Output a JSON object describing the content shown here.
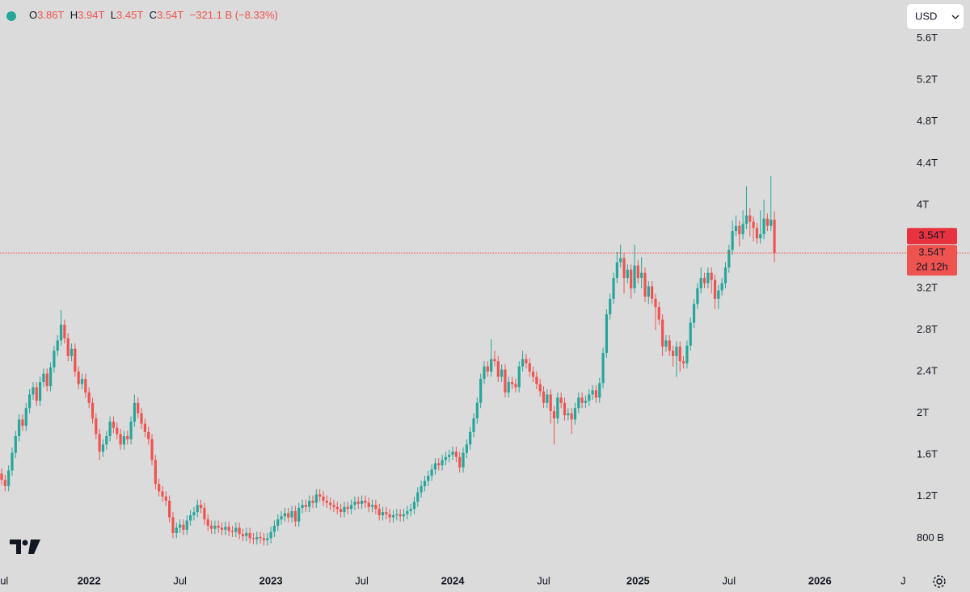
{
  "legend": {
    "items": [
      {
        "key": "O",
        "value": "3.86T"
      },
      {
        "key": "H",
        "value": "3.94T"
      },
      {
        "key": "L",
        "value": "3.45T"
      },
      {
        "key": "C",
        "value": "3.54T"
      }
    ],
    "change": "−321.1 B (−8.33%)"
  },
  "currency": "USD",
  "chart_data": {
    "type": "candlestick",
    "up_color": "#26a69a",
    "down_color": "#ef5350",
    "grid": false,
    "ylim": [
      0.5,
      5.97
    ],
    "yticks": [
      {
        "value": 0.8,
        "label": "800 B"
      },
      {
        "value": 1.2,
        "label": "1.2T"
      },
      {
        "value": 1.6,
        "label": "1.6T"
      },
      {
        "value": 2,
        "label": "2T"
      },
      {
        "value": 2.4,
        "label": "2.4T"
      },
      {
        "value": 2.8,
        "label": "2.8T"
      },
      {
        "value": 3.2,
        "label": "3.2T"
      },
      {
        "value": 4,
        "label": "4T"
      },
      {
        "value": 4.4,
        "label": "4.4T"
      },
      {
        "value": 4.8,
        "label": "4.8T"
      },
      {
        "value": 5.2,
        "label": "5.2T"
      },
      {
        "value": 5.6,
        "label": "5.6T"
      }
    ],
    "price_labels": [
      "3.54T",
      "3.54T"
    ],
    "countdown": "2d 12h",
    "categories": [
      "Jul",
      null,
      null,
      null,
      null,
      null,
      null,
      null,
      null,
      null,
      null,
      null,
      null,
      null,
      null,
      null,
      null,
      null,
      null,
      null,
      null,
      null,
      null,
      null,
      null,
      "2022",
      null,
      null,
      null,
      null,
      null,
      null,
      null,
      null,
      null,
      null,
      null,
      null,
      null,
      null,
      null,
      null,
      null,
      null,
      null,
      null,
      null,
      null,
      null,
      null,
      null,
      "Jul",
      null,
      null,
      null,
      null,
      null,
      null,
      null,
      null,
      null,
      null,
      null,
      null,
      null,
      null,
      null,
      null,
      null,
      null,
      null,
      null,
      null,
      null,
      null,
      null,
      null,
      "2023",
      null,
      null,
      null,
      null,
      null,
      null,
      null,
      null,
      null,
      null,
      null,
      null,
      null,
      null,
      null,
      null,
      null,
      null,
      null,
      null,
      null,
      null,
      null,
      null,
      null,
      "Jul",
      null,
      null,
      null,
      null,
      null,
      null,
      null,
      null,
      null,
      null,
      null,
      null,
      null,
      null,
      null,
      null,
      null,
      null,
      null,
      null,
      null,
      null,
      null,
      null,
      null,
      "2024",
      null,
      null,
      null,
      null,
      null,
      null,
      null,
      null,
      null,
      null,
      null,
      null,
      null,
      null,
      null,
      null,
      null,
      null,
      null,
      null,
      null,
      null,
      null,
      null,
      null,
      "Jul",
      null,
      null,
      null,
      null,
      null,
      null,
      null,
      null,
      null,
      null,
      null,
      null,
      null,
      null,
      null,
      null,
      null,
      null,
      null,
      null,
      null,
      null,
      null,
      null,
      null,
      null,
      "2025",
      null,
      null,
      null,
      null,
      null,
      null,
      null,
      null,
      null,
      null,
      null,
      null,
      null,
      null,
      null,
      null,
      null,
      null,
      null,
      null,
      null,
      null,
      null,
      null,
      null,
      "Jul",
      null,
      null,
      null,
      null,
      null,
      null,
      null,
      null,
      null,
      null,
      null,
      null,
      null,
      null,
      null,
      null,
      null,
      null,
      null,
      null,
      null,
      null,
      null,
      null,
      null,
      "2026",
      null,
      null,
      null,
      null,
      null,
      null,
      null,
      null,
      null,
      null,
      null,
      null,
      null,
      null,
      null,
      null,
      null,
      null,
      null,
      null,
      null,
      null,
      null,
      null,
      "Jul"
    ],
    "open": [
      1.42,
      1.36,
      1.3,
      1.45,
      1.62,
      1.78,
      1.94,
      1.88,
      2.05,
      2.18,
      2.25,
      2.12,
      2.3,
      2.38,
      2.26,
      2.44,
      2.6,
      2.7,
      2.85,
      2.72,
      2.55,
      2.62,
      2.4,
      2.28,
      2.33,
      2.2,
      2.1,
      1.95,
      1.8,
      1.63,
      1.7,
      1.78,
      1.92,
      1.86,
      1.8,
      1.7,
      1.78,
      1.75,
      1.92,
      2.1,
      2.0,
      1.9,
      1.82,
      1.75,
      1.55,
      1.32,
      1.25,
      1.2,
      1.16,
      1.0,
      0.85,
      0.9,
      0.93,
      0.88,
      0.97,
      1.02,
      1.05,
      1.12,
      1.09,
      0.98,
      0.92,
      0.89,
      0.92,
      0.9,
      0.88,
      0.91,
      0.87,
      0.86,
      0.9,
      0.84,
      0.82,
      0.85,
      0.8,
      0.79,
      0.81,
      0.8,
      0.78,
      0.8,
      0.86,
      0.92,
      0.98,
      1.01,
      1.04,
      1.0,
      1.06,
      0.96,
      1.09,
      1.12,
      1.1,
      1.16,
      1.14,
      1.22,
      1.2,
      1.16,
      1.14,
      1.12,
      1.1,
      1.08,
      1.05,
      1.1,
      1.08,
      1.12,
      1.15,
      1.13,
      1.16,
      1.14,
      1.1,
      1.12,
      1.08,
      1.02,
      1.05,
      1.03,
      1.0,
      1.02,
      1.03,
      1.01,
      1.03,
      1.06,
      1.08,
      1.15,
      1.24,
      1.3,
      1.35,
      1.4,
      1.46,
      1.52,
      1.5,
      1.55,
      1.58,
      1.6,
      1.63,
      1.58,
      1.48,
      1.62,
      1.7,
      1.82,
      1.95,
      2.1,
      2.33,
      2.45,
      2.4,
      2.52,
      2.5,
      2.35,
      2.42,
      2.2,
      2.3,
      2.28,
      2.25,
      2.45,
      2.52,
      2.48,
      2.4,
      2.35,
      2.28,
      2.21,
      2.1,
      2.18,
      2.02,
      1.95,
      2.15,
      2.1,
      1.98,
      2.0,
      1.94,
      2.05,
      2.15,
      2.1,
      2.12,
      2.18,
      2.22,
      2.15,
      2.29,
      2.58,
      2.95,
      3.1,
      3.3,
      3.45,
      3.49,
      3.3,
      3.38,
      3.2,
      3.42,
      3.3,
      3.35,
      3.12,
      3.22,
      3.1,
      3.02,
      2.9,
      2.64,
      2.7,
      2.6,
      2.55,
      2.64,
      2.5,
      2.48,
      2.65,
      2.87,
      3.05,
      3.2,
      3.3,
      3.25,
      3.35,
      3.28,
      3.1,
      3.18,
      3.25,
      3.4,
      3.57,
      3.75,
      3.8,
      3.72,
      3.82,
      3.9,
      3.84,
      3.78,
      3.68,
      3.72,
      3.87,
      3.8,
      3.86,
      null,
      null,
      null,
      null,
      null,
      null,
      null,
      null,
      null,
      null,
      null,
      null,
      null,
      null,
      null,
      null,
      null,
      null,
      null,
      null,
      null,
      null,
      null,
      null,
      null,
      null,
      null,
      null,
      null,
      null,
      null,
      null,
      null,
      null,
      null,
      null,
      null,
      null
    ],
    "high": [
      1.47,
      1.41,
      1.5,
      1.67,
      1.83,
      1.99,
      1.99,
      2.1,
      2.23,
      2.3,
      2.3,
      2.35,
      2.43,
      2.43,
      2.49,
      2.65,
      2.75,
      2.99,
      2.9,
      2.77,
      2.67,
      2.67,
      2.45,
      2.38,
      2.38,
      2.25,
      2.15,
      2.0,
      1.85,
      1.75,
      1.83,
      1.97,
      1.97,
      1.91,
      1.85,
      1.83,
      1.83,
      1.97,
      2.18,
      2.15,
      2.05,
      1.95,
      1.87,
      1.8,
      1.6,
      1.37,
      1.3,
      1.25,
      1.21,
      1.05,
      0.95,
      0.98,
      0.98,
      1.02,
      1.07,
      1.1,
      1.17,
      1.17,
      1.14,
      1.03,
      0.97,
      0.97,
      0.97,
      0.95,
      0.96,
      0.96,
      0.92,
      0.95,
      0.95,
      0.89,
      0.9,
      0.9,
      0.85,
      0.86,
      0.86,
      0.85,
      0.85,
      0.91,
      0.97,
      1.03,
      1.06,
      1.09,
      1.09,
      1.11,
      1.11,
      1.14,
      1.17,
      1.17,
      1.21,
      1.21,
      1.27,
      1.27,
      1.25,
      1.21,
      1.19,
      1.17,
      1.15,
      1.13,
      1.15,
      1.15,
      1.17,
      1.2,
      1.2,
      1.21,
      1.21,
      1.19,
      1.17,
      1.17,
      1.13,
      1.1,
      1.1,
      1.08,
      1.07,
      1.08,
      1.08,
      1.08,
      1.11,
      1.13,
      1.2,
      1.29,
      1.35,
      1.4,
      1.45,
      1.51,
      1.57,
      1.57,
      1.6,
      1.63,
      1.65,
      1.68,
      1.68,
      1.63,
      1.67,
      1.75,
      1.87,
      2.0,
      2.15,
      2.38,
      2.5,
      2.5,
      2.71,
      2.6,
      2.55,
      2.47,
      2.47,
      2.35,
      2.35,
      2.33,
      2.5,
      2.6,
      2.57,
      2.53,
      2.45,
      2.4,
      2.33,
      2.26,
      2.23,
      2.23,
      2.07,
      2.2,
      2.2,
      2.15,
      2.05,
      2.05,
      2.1,
      2.2,
      2.2,
      2.17,
      2.23,
      2.27,
      2.27,
      2.34,
      2.63,
      3.0,
      3.15,
      3.35,
      3.55,
      3.62,
      3.54,
      3.43,
      3.43,
      3.62,
      3.47,
      3.5,
      3.4,
      3.27,
      3.27,
      3.15,
      3.07,
      2.95,
      2.75,
      2.75,
      2.65,
      2.69,
      2.69,
      2.55,
      2.7,
      2.92,
      3.1,
      3.25,
      3.4,
      3.35,
      3.4,
      3.4,
      3.33,
      3.23,
      3.3,
      3.45,
      3.62,
      3.85,
      3.9,
      3.85,
      3.95,
      4.18,
      3.97,
      3.89,
      3.83,
      3.95,
      4.05,
      3.92,
      4.28,
      3.94,
      null,
      null,
      null,
      null,
      null,
      null,
      null,
      null,
      null,
      null,
      null,
      null,
      null,
      null,
      null,
      null,
      null,
      null,
      null,
      null,
      null,
      null,
      null,
      null,
      null,
      null,
      null,
      null,
      null,
      null,
      null,
      null,
      null,
      null,
      null,
      null,
      null,
      null
    ],
    "low": [
      1.31,
      1.25,
      1.25,
      1.4,
      1.57,
      1.73,
      1.83,
      1.83,
      2.0,
      2.13,
      2.07,
      2.07,
      2.25,
      2.21,
      2.21,
      2.39,
      2.55,
      2.65,
      2.67,
      2.5,
      2.5,
      2.35,
      2.23,
      2.23,
      2.15,
      2.05,
      1.9,
      1.75,
      1.55,
      1.58,
      1.65,
      1.73,
      1.81,
      1.75,
      1.65,
      1.65,
      1.7,
      1.7,
      1.87,
      1.95,
      1.85,
      1.77,
      1.7,
      1.5,
      1.27,
      1.2,
      1.15,
      1.11,
      0.95,
      0.8,
      0.8,
      0.85,
      0.83,
      0.83,
      0.92,
      0.97,
      1.0,
      1.04,
      0.93,
      0.87,
      0.84,
      0.84,
      0.85,
      0.83,
      0.83,
      0.82,
      0.81,
      0.81,
      0.79,
      0.77,
      0.77,
      0.75,
      0.74,
      0.74,
      0.75,
      0.73,
      0.73,
      0.75,
      0.81,
      0.87,
      0.93,
      0.96,
      0.95,
      0.95,
      0.91,
      0.91,
      1.04,
      1.05,
      1.05,
      1.09,
      1.09,
      1.15,
      1.11,
      1.09,
      1.07,
      1.05,
      1.03,
      1.0,
      1.0,
      1.03,
      1.03,
      1.07,
      1.08,
      1.08,
      1.09,
      1.05,
      1.05,
      1.03,
      0.97,
      0.97,
      0.98,
      0.95,
      0.95,
      0.97,
      0.96,
      0.96,
      0.98,
      1.01,
      1.03,
      1.1,
      1.19,
      1.25,
      1.3,
      1.35,
      1.41,
      1.45,
      1.45,
      1.5,
      1.53,
      1.55,
      1.53,
      1.43,
      1.43,
      1.57,
      1.65,
      1.77,
      1.9,
      2.05,
      2.28,
      2.35,
      2.35,
      2.45,
      2.3,
      2.3,
      2.15,
      2.15,
      2.23,
      2.2,
      2.2,
      2.4,
      2.43,
      2.35,
      2.3,
      2.23,
      2.16,
      2.05,
      2.05,
      1.9,
      1.7,
      1.9,
      2.05,
      1.93,
      1.93,
      1.8,
      1.89,
      2.0,
      2.05,
      2.05,
      2.07,
      2.13,
      2.1,
      2.1,
      2.24,
      2.53,
      2.9,
      3.05,
      3.25,
      3.4,
      3.15,
      3.25,
      3.1,
      3.15,
      3.25,
      3.2,
      3.07,
      3.05,
      3.05,
      2.8,
      2.85,
      2.55,
      2.59,
      2.55,
      2.45,
      2.35,
      2.4,
      2.43,
      2.43,
      2.6,
      2.82,
      3.0,
      3.15,
      3.2,
      3.2,
      3.15,
      3.0,
      3.0,
      3.13,
      3.2,
      3.35,
      3.52,
      3.7,
      3.6,
      3.67,
      3.77,
      3.7,
      3.65,
      3.63,
      3.63,
      3.67,
      3.75,
      3.75,
      3.45,
      null,
      null,
      null,
      null,
      null,
      null,
      null,
      null,
      null,
      null,
      null,
      null,
      null,
      null,
      null,
      null,
      null,
      null,
      null,
      null,
      null,
      null,
      null,
      null,
      null,
      null,
      null,
      null,
      null,
      null,
      null,
      null,
      null,
      null,
      null,
      null,
      null,
      null
    ],
    "close": [
      1.36,
      1.3,
      1.45,
      1.62,
      1.78,
      1.94,
      1.88,
      2.05,
      2.18,
      2.25,
      2.12,
      2.3,
      2.38,
      2.26,
      2.44,
      2.6,
      2.7,
      2.85,
      2.72,
      2.55,
      2.62,
      2.4,
      2.28,
      2.33,
      2.2,
      2.1,
      1.95,
      1.8,
      1.63,
      1.7,
      1.78,
      1.92,
      1.86,
      1.8,
      1.7,
      1.78,
      1.75,
      1.92,
      2.1,
      2.0,
      1.9,
      1.82,
      1.75,
      1.55,
      1.32,
      1.25,
      1.2,
      1.16,
      1.0,
      0.85,
      0.9,
      0.93,
      0.88,
      0.97,
      1.02,
      1.05,
      1.12,
      1.09,
      0.98,
      0.92,
      0.89,
      0.92,
      0.9,
      0.88,
      0.91,
      0.87,
      0.86,
      0.9,
      0.84,
      0.82,
      0.85,
      0.8,
      0.79,
      0.81,
      0.8,
      0.78,
      0.8,
      0.86,
      0.92,
      0.98,
      1.01,
      1.04,
      1.0,
      1.06,
      0.96,
      1.09,
      1.12,
      1.1,
      1.16,
      1.14,
      1.22,
      1.2,
      1.16,
      1.14,
      1.12,
      1.1,
      1.08,
      1.05,
      1.1,
      1.08,
      1.12,
      1.15,
      1.13,
      1.16,
      1.14,
      1.1,
      1.12,
      1.08,
      1.02,
      1.05,
      1.03,
      1.0,
      1.02,
      1.03,
      1.01,
      1.03,
      1.06,
      1.08,
      1.15,
      1.24,
      1.3,
      1.35,
      1.4,
      1.46,
      1.52,
      1.5,
      1.55,
      1.58,
      1.6,
      1.63,
      1.58,
      1.48,
      1.62,
      1.7,
      1.82,
      1.95,
      2.1,
      2.33,
      2.45,
      2.4,
      2.52,
      2.5,
      2.35,
      2.42,
      2.2,
      2.3,
      2.28,
      2.25,
      2.45,
      2.52,
      2.48,
      2.4,
      2.35,
      2.28,
      2.21,
      2.1,
      2.18,
      2.02,
      1.95,
      2.15,
      2.1,
      1.98,
      2.0,
      1.94,
      2.05,
      2.15,
      2.1,
      2.12,
      2.18,
      2.22,
      2.15,
      2.29,
      2.58,
      2.95,
      3.1,
      3.3,
      3.45,
      3.49,
      3.3,
      3.38,
      3.2,
      3.42,
      3.3,
      3.35,
      3.12,
      3.22,
      3.1,
      3.02,
      2.9,
      2.64,
      2.7,
      2.6,
      2.55,
      2.64,
      2.5,
      2.48,
      2.65,
      2.87,
      3.05,
      3.2,
      3.3,
      3.25,
      3.35,
      3.28,
      3.1,
      3.18,
      3.25,
      3.4,
      3.57,
      3.75,
      3.8,
      3.72,
      3.82,
      3.9,
      3.84,
      3.78,
      3.68,
      3.72,
      3.87,
      3.8,
      3.86,
      3.54,
      null,
      null,
      null,
      null,
      null,
      null,
      null,
      null,
      null,
      null,
      null,
      null,
      null,
      null,
      null,
      null,
      null,
      null,
      null,
      null,
      null,
      null,
      null,
      null,
      null,
      null,
      null,
      null,
      null,
      null,
      null,
      null,
      null,
      null,
      null,
      null,
      null,
      null
    ]
  }
}
